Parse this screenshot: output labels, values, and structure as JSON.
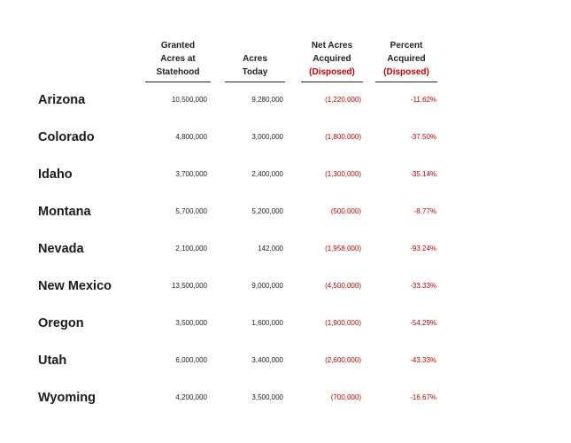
{
  "headers": {
    "granted": [
      "Granted",
      "Acres at",
      "Statehood"
    ],
    "today": [
      "Acres",
      "Today"
    ],
    "net": [
      "Net Acres",
      "Acquired",
      "(Disposed)"
    ],
    "percent": [
      "Percent",
      "Acquired",
      "(Disposed)"
    ]
  },
  "colors": {
    "negative": "#c00000",
    "text": "#222222"
  },
  "rows": [
    {
      "state": "Arizona",
      "granted": "10,500,000",
      "today": "9,280,000",
      "net": "(1,220,000)",
      "percent": "-11.62%"
    },
    {
      "state": "Colorado",
      "granted": "4,800,000",
      "today": "3,000,000",
      "net": "(1,800,000)",
      "percent": "-37.50%"
    },
    {
      "state": "Idaho",
      "granted": "3,700,000",
      "today": "2,400,000",
      "net": "(1,300,000)",
      "percent": "-35.14%"
    },
    {
      "state": "Montana",
      "granted": "5,700,000",
      "today": "5,200,000",
      "net": "(500,000)",
      "percent": "-8.77%"
    },
    {
      "state": "Nevada",
      "granted": "2,100,000",
      "today": "142,000",
      "net": "(1,958,000)",
      "percent": "-93.24%"
    },
    {
      "state": "New Mexico",
      "granted": "13,500,000",
      "today": "9,000,000",
      "net": "(4,500,000)",
      "percent": "-33.33%"
    },
    {
      "state": "Oregon",
      "granted": "3,500,000",
      "today": "1,600,000",
      "net": "(1,900,000)",
      "percent": "-54.29%"
    },
    {
      "state": "Utah",
      "granted": "6,000,000",
      "today": "3,400,000",
      "net": "(2,600,000)",
      "percent": "-43.33%"
    },
    {
      "state": "Wyoming",
      "granted": "4,200,000",
      "today": "3,500,000",
      "net": "(700,000)",
      "percent": "-16.67%"
    }
  ]
}
